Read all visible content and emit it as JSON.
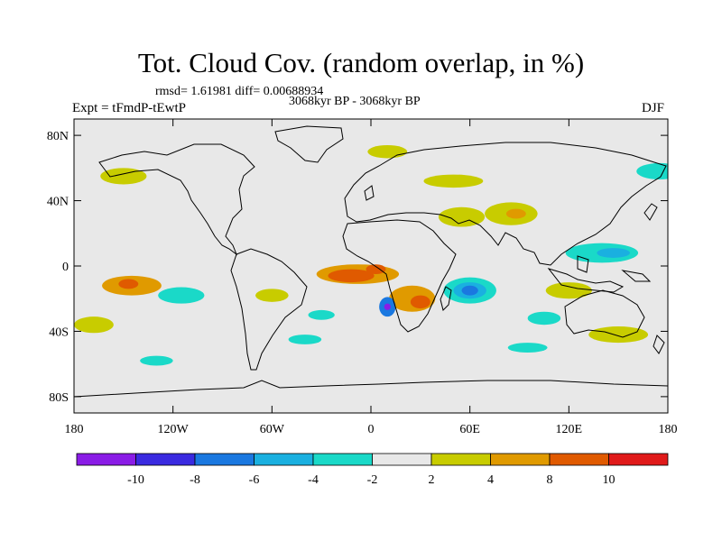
{
  "title": "Tot. Cloud Cov. (random overlap, in %)",
  "stats": "rmsd= 1.61981 diff= 0.00688934",
  "period": "3068kyr BP - 3068kyr BP",
  "experiment": "Expt = tFmdP-tEwtP",
  "season": "DJF",
  "map": {
    "lon_range": [
      -180,
      180
    ],
    "lat_range": [
      -90,
      90
    ],
    "lon_ticks": [
      {
        "value": -180,
        "label": "180"
      },
      {
        "value": -120,
        "label": "120W"
      },
      {
        "value": -60,
        "label": "60W"
      },
      {
        "value": 0,
        "label": "0"
      },
      {
        "value": 60,
        "label": "60E"
      },
      {
        "value": 120,
        "label": "120E"
      },
      {
        "value": 180,
        "label": "180"
      }
    ],
    "lat_ticks": [
      {
        "value": 80,
        "label": "80N"
      },
      {
        "value": 40,
        "label": "40N"
      },
      {
        "value": 0,
        "label": "0"
      },
      {
        "value": -40,
        "label": "40S"
      },
      {
        "value": -80,
        "label": "80S"
      }
    ],
    "background_color": "#e8e8e8"
  },
  "colorbar": {
    "labels": [
      "-10",
      "-8",
      "-6",
      "-4",
      "-2",
      "2",
      "4",
      "8",
      "10"
    ],
    "colors": [
      "#8a1ce6",
      "#3a2ae0",
      "#1a78e0",
      "#1ab0e0",
      "#1ad9c8",
      "#e8e8e8",
      "#c8cc00",
      "#e09a00",
      "#e05a00",
      "#e01a1a"
    ]
  },
  "chart_data": {
    "type": "heatmap",
    "title": "Tot. Cloud Cov. (random overlap, in %)",
    "x_range": [
      -180,
      180
    ],
    "y_range": [
      -90,
      90
    ],
    "levels": [
      -10,
      -8,
      -6,
      -4,
      -2,
      2,
      4,
      8,
      10
    ],
    "anomalies": [
      {
        "lon": -145,
        "lat": -12,
        "rx": 18,
        "ry": 6,
        "level": 4
      },
      {
        "lon": -147,
        "lat": -11,
        "rx": 6,
        "ry": 3,
        "level": 8
      },
      {
        "lon": -168,
        "lat": -36,
        "rx": 12,
        "ry": 5,
        "level": 2
      },
      {
        "lon": -115,
        "lat": -18,
        "rx": 14,
        "ry": 5,
        "level": -2
      },
      {
        "lon": -60,
        "lat": -18,
        "rx": 10,
        "ry": 4,
        "level": 2
      },
      {
        "lon": -30,
        "lat": -30,
        "rx": 8,
        "ry": 3,
        "level": -2
      },
      {
        "lon": -40,
        "lat": -45,
        "rx": 10,
        "ry": 3,
        "level": -2
      },
      {
        "lon": -130,
        "lat": -58,
        "rx": 10,
        "ry": 3,
        "level": -2
      },
      {
        "lon": -8,
        "lat": -5,
        "rx": 25,
        "ry": 6,
        "level": 4
      },
      {
        "lon": -12,
        "lat": -6,
        "rx": 14,
        "ry": 4,
        "level": 8
      },
      {
        "lon": 3,
        "lat": -2,
        "rx": 6,
        "ry": 3,
        "level": 8
      },
      {
        "lon": 10,
        "lat": -25,
        "rx": 5,
        "ry": 6,
        "level": -6
      },
      {
        "lon": 10,
        "lat": -25,
        "rx": 2,
        "ry": 2,
        "level": -10
      },
      {
        "lon": 25,
        "lat": -20,
        "rx": 14,
        "ry": 8,
        "level": 4
      },
      {
        "lon": 30,
        "lat": -22,
        "rx": 6,
        "ry": 4,
        "level": 8
      },
      {
        "lon": 60,
        "lat": -15,
        "rx": 16,
        "ry": 8,
        "level": -2
      },
      {
        "lon": 60,
        "lat": -15,
        "rx": 10,
        "ry": 5,
        "level": -4
      },
      {
        "lon": 60,
        "lat": -15,
        "rx": 5,
        "ry": 3,
        "level": -6
      },
      {
        "lon": 140,
        "lat": 8,
        "rx": 22,
        "ry": 6,
        "level": -2
      },
      {
        "lon": 147,
        "lat": 8,
        "rx": 10,
        "ry": 3,
        "level": -4
      },
      {
        "lon": 55,
        "lat": 30,
        "rx": 14,
        "ry": 6,
        "level": 2
      },
      {
        "lon": 85,
        "lat": 32,
        "rx": 16,
        "ry": 7,
        "level": 2
      },
      {
        "lon": 88,
        "lat": 32,
        "rx": 6,
        "ry": 3,
        "level": 4
      },
      {
        "lon": 120,
        "lat": -15,
        "rx": 14,
        "ry": 5,
        "level": 2
      },
      {
        "lon": 105,
        "lat": -32,
        "rx": 10,
        "ry": 4,
        "level": -2
      },
      {
        "lon": 175,
        "lat": 58,
        "rx": 14,
        "ry": 5,
        "level": -2
      },
      {
        "lon": -150,
        "lat": 55,
        "rx": 14,
        "ry": 5,
        "level": 2
      },
      {
        "lon": 50,
        "lat": 52,
        "rx": 18,
        "ry": 4,
        "level": 2
      },
      {
        "lon": 150,
        "lat": -42,
        "rx": 18,
        "ry": 5,
        "level": 2
      },
      {
        "lon": 95,
        "lat": -50,
        "rx": 12,
        "ry": 3,
        "level": -2
      },
      {
        "lon": 10,
        "lat": 70,
        "rx": 12,
        "ry": 4,
        "level": 2
      }
    ]
  }
}
